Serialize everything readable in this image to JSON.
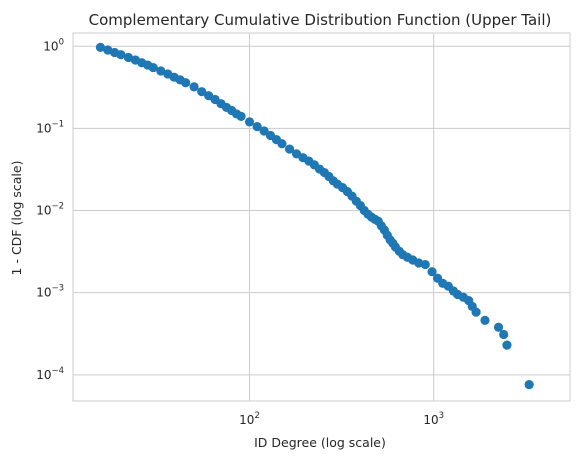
{
  "chart_data": {
    "type": "scatter",
    "title": "Complementary Cumulative Distribution Function (Upper Tail)",
    "xlabel": "ID Degree (log scale)",
    "ylabel": "1 - CDF (log scale)",
    "x_scale": "log",
    "y_scale": "log",
    "xlim": [
      11,
      5500
    ],
    "ylim": [
      4.8e-05,
      1.45
    ],
    "grid": true,
    "color": "#1f77b4",
    "x_ticks": [
      {
        "value": 100,
        "base": "10",
        "exp": "2"
      },
      {
        "value": 1000,
        "base": "10",
        "exp": "3"
      }
    ],
    "y_ticks": [
      {
        "value": 1,
        "base": "10",
        "exp": "0"
      },
      {
        "value": 0.1,
        "base": "10",
        "exp": "−1"
      },
      {
        "value": 0.01,
        "base": "10",
        "exp": "−2"
      },
      {
        "value": 0.001,
        "base": "10",
        "exp": "−3"
      },
      {
        "value": 0.0001,
        "base": "10",
        "exp": "−4"
      }
    ],
    "points": [
      [
        15.5,
        0.97
      ],
      [
        17,
        0.9
      ],
      [
        18.5,
        0.84
      ],
      [
        20,
        0.79
      ],
      [
        22,
        0.73
      ],
      [
        24,
        0.68
      ],
      [
        26,
        0.63
      ],
      [
        28,
        0.59
      ],
      [
        30,
        0.55
      ],
      [
        33,
        0.5
      ],
      [
        36,
        0.46
      ],
      [
        39,
        0.42
      ],
      [
        42,
        0.39
      ],
      [
        45,
        0.36
      ],
      [
        50,
        0.32
      ],
      [
        55,
        0.28
      ],
      [
        60,
        0.25
      ],
      [
        65,
        0.225
      ],
      [
        70,
        0.2
      ],
      [
        75,
        0.18
      ],
      [
        80,
        0.165
      ],
      [
        85,
        0.15
      ],
      [
        90,
        0.14
      ],
      [
        100,
        0.12
      ],
      [
        110,
        0.105
      ],
      [
        120,
        0.093
      ],
      [
        130,
        0.082
      ],
      [
        140,
        0.073
      ],
      [
        150,
        0.065
      ],
      [
        165,
        0.056
      ],
      [
        180,
        0.049
      ],
      [
        195,
        0.044
      ],
      [
        210,
        0.04
      ],
      [
        225,
        0.036
      ],
      [
        240,
        0.032
      ],
      [
        255,
        0.029
      ],
      [
        270,
        0.026
      ],
      [
        285,
        0.023
      ],
      [
        300,
        0.021
      ],
      [
        320,
        0.019
      ],
      [
        340,
        0.017
      ],
      [
        360,
        0.015
      ],
      [
        380,
        0.013
      ],
      [
        400,
        0.0115
      ],
      [
        420,
        0.01
      ],
      [
        440,
        0.009
      ],
      [
        460,
        0.0083
      ],
      [
        480,
        0.0078
      ],
      [
        500,
        0.0074
      ],
      [
        520,
        0.0065
      ],
      [
        540,
        0.0058
      ],
      [
        560,
        0.005
      ],
      [
        580,
        0.0044
      ],
      [
        600,
        0.004
      ],
      [
        620,
        0.0036
      ],
      [
        650,
        0.0032
      ],
      [
        680,
        0.0029
      ],
      [
        720,
        0.0027
      ],
      [
        770,
        0.0025
      ],
      [
        830,
        0.0023
      ],
      [
        900,
        0.0022
      ],
      [
        980,
        0.0018
      ],
      [
        1050,
        0.0015
      ],
      [
        1120,
        0.0013
      ],
      [
        1200,
        0.0012
      ],
      [
        1280,
        0.00105
      ],
      [
        1350,
        0.00095
      ],
      [
        1450,
        0.00088
      ],
      [
        1550,
        0.0008
      ],
      [
        1620,
        0.00068
      ],
      [
        1700,
        0.00058
      ],
      [
        1900,
        0.00046
      ],
      [
        2250,
        0.00038
      ],
      [
        2400,
        0.00031
      ],
      [
        2500,
        0.00023
      ],
      [
        3300,
        7.6e-05
      ]
    ]
  }
}
